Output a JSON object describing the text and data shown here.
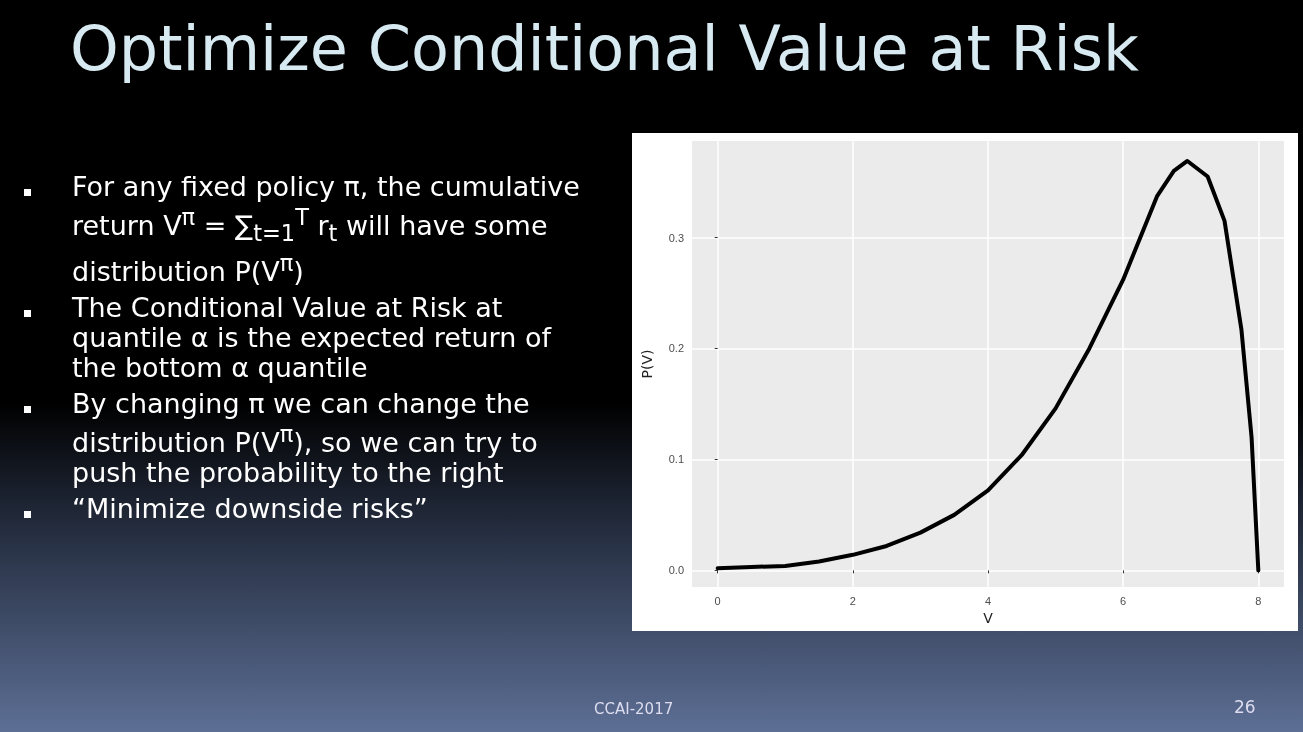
{
  "chart_data": {
    "type": "line",
    "title": "Optimize Conditional Value at Risk",
    "xlabel": "V",
    "ylabel": "P(V)",
    "x": [
      0,
      0.5,
      1,
      1.5,
      2,
      2.5,
      3,
      3.5,
      4,
      4.5,
      5,
      5.5,
      6,
      6.5,
      6.75,
      6.95,
      7.25,
      7.5,
      7.75,
      7.9,
      8
    ],
    "series": [
      {
        "color": "#000000",
        "values": [
          0.002,
          0.003,
          0.004,
          0.008,
          0.014,
          0.022,
          0.034,
          0.05,
          0.072,
          0.104,
          0.146,
          0.2,
          0.262,
          0.337,
          0.36,
          0.369,
          0.355,
          0.315,
          0.217,
          0.12,
          0
        ]
      }
    ],
    "xlim": [
      -0.38,
      8.38
    ],
    "xticks": [
      0,
      2,
      4,
      6,
      8
    ],
    "ylim": [
      -0.015,
      0.387
    ],
    "yticks": [
      {
        "value": 0,
        "label": "0.0"
      },
      {
        "value": 0.1,
        "label": "0.1"
      },
      {
        "value": 0.2,
        "label": "0.2"
      },
      {
        "value": 0.3,
        "label": "0.3"
      }
    ],
    "grid": true,
    "marker": "none",
    "line_style": "solid",
    "annotations": [
      "For any fixed policy π, the cumulative return V$^{π}$ = ∑$_{t=1}$$^{T}$ r$_{t}$ will have some distribution P(V$^{π}$)",
      "The Conditional Value at Risk at quantile α is the expected return of the bottom α quantile",
      "By changing π we can change the distribution P(V$^{π}$), so we can try to push the probability to the right",
      "“Minimize downside risks”",
      "CCAI-2017",
      "26"
    ]
  }
}
